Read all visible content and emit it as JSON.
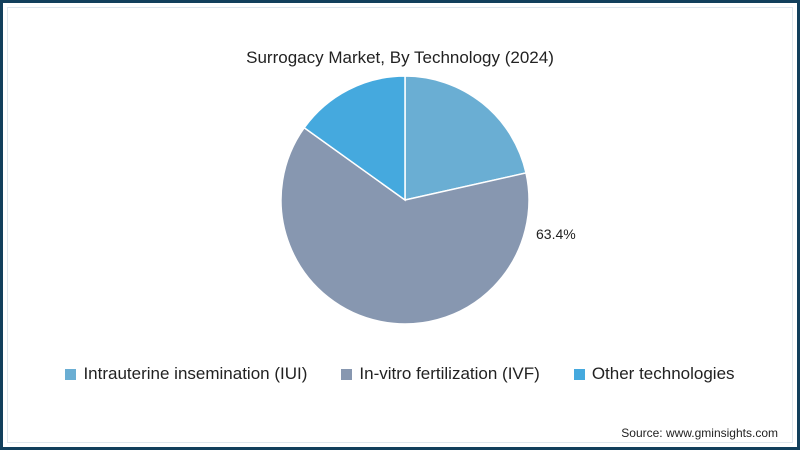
{
  "chart_data": {
    "type": "pie",
    "title": "Surrogacy Market, By Technology (2024)",
    "categories": [
      "Intrauterine insemination (IUI)",
      "In-vitro fertilization (IVF)",
      "Other technologies"
    ],
    "values": [
      21.5,
      63.4,
      15.1
    ],
    "colors": [
      "#6aaed3",
      "#8797b0",
      "#45a9de"
    ],
    "data_labels": [
      "",
      "63.4%",
      ""
    ],
    "start_angle_deg": 0,
    "direction": "clockwise",
    "legend_position": "bottom",
    "unit": "%"
  },
  "chart": {
    "title": "Surrogacy Market, By Technology (2024)",
    "ivf_label": "63.4%"
  },
  "legend": {
    "items": [
      {
        "label": "Intrauterine insemination (IUI)",
        "color": "#6aaed3"
      },
      {
        "label": "In-vitro fertilization (IVF)",
        "color": "#8797b0"
      },
      {
        "label": "Other technologies",
        "color": "#45a9de"
      }
    ]
  },
  "footer": {
    "source": "Source: www.gminsights.com"
  },
  "colors": {
    "border": "#123f5c",
    "text": "#222222"
  }
}
